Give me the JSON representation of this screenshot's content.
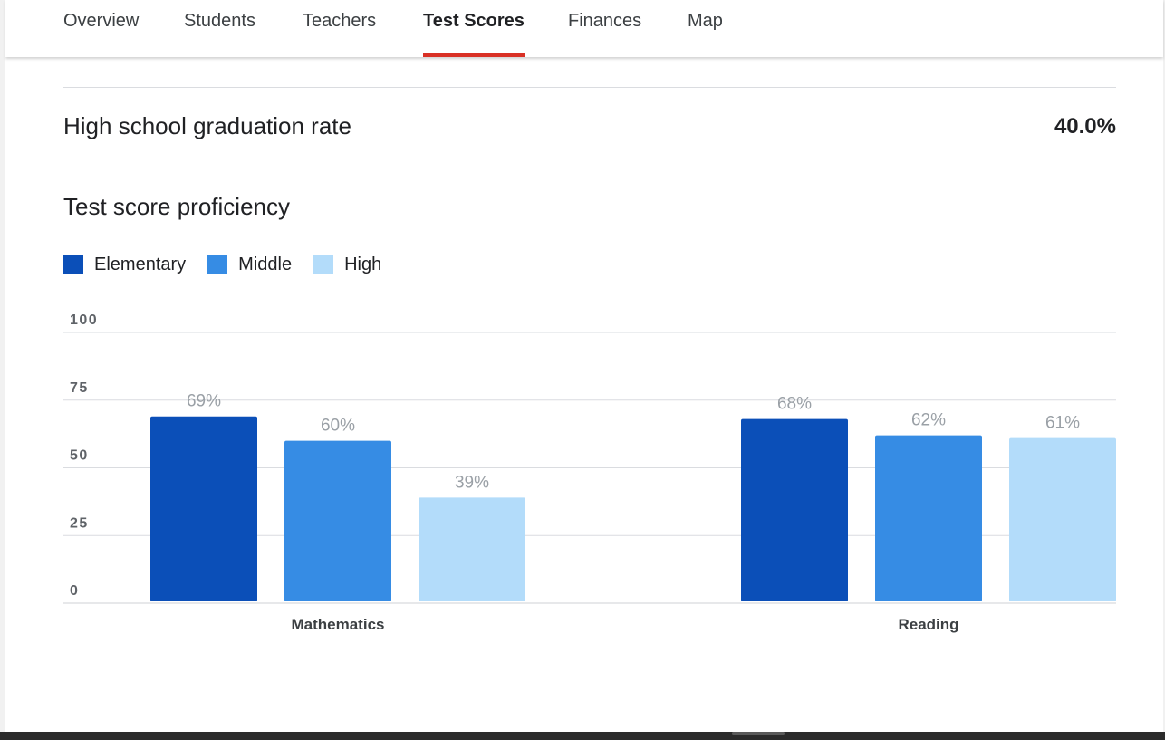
{
  "tabs": [
    {
      "label": "Overview",
      "active": false
    },
    {
      "label": "Students",
      "active": false
    },
    {
      "label": "Teachers",
      "active": false
    },
    {
      "label": "Test Scores",
      "active": true
    },
    {
      "label": "Finances",
      "active": false
    },
    {
      "label": "Map",
      "active": false
    }
  ],
  "colors": {
    "accent_underline": "#d93025",
    "elementary": "#0b4fb8",
    "middle": "#368ce4",
    "high": "#b3dcfa",
    "value_label": "#9aa0a6"
  },
  "graduation": {
    "label": "High school graduation rate",
    "value": "40.0%"
  },
  "section_title": "Test score proficiency",
  "chart_data": {
    "type": "bar",
    "categories": [
      "Mathematics",
      "Reading"
    ],
    "series": [
      {
        "name": "Elementary",
        "values": [
          69,
          68
        ],
        "labels": [
          "69%",
          "68%"
        ]
      },
      {
        "name": "Middle",
        "values": [
          60,
          62
        ],
        "labels": [
          "60%",
          "62%"
        ]
      },
      {
        "name": "High",
        "values": [
          39,
          61
        ],
        "labels": [
          "39%",
          "61%"
        ]
      }
    ],
    "ylim": [
      0,
      100
    ],
    "yticks": [
      "0",
      "25",
      "50",
      "75",
      "100"
    ],
    "legend": "top-left",
    "grid": true
  }
}
